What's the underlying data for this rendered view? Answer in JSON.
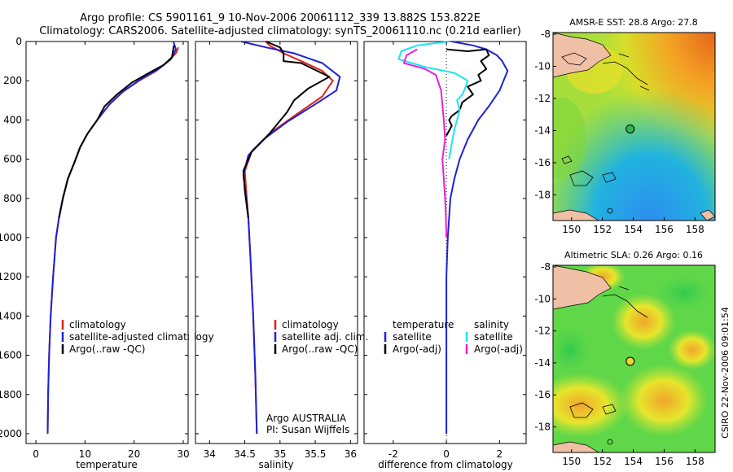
{
  "header": {
    "line1": "Argo profile: CS 5901161_9 10-Nov-2006 20061112_339 13.882S 153.822E",
    "line2": "Climatology: CARS2006. Satellite-adjusted climatology: synTS_20061110.nc (0.21d earlier)"
  },
  "credit": "CSIRO 22-Nov-2006 09:01:54",
  "colors": {
    "red": "#e0201b",
    "blue": "#1e22d6",
    "black": "#000000",
    "cyan": "#19e6ee",
    "magenta": "#ea20d8"
  },
  "chart_data": [
    {
      "type": "line",
      "id": "temperature",
      "xlabel": "temperature",
      "xlim": [
        -2,
        31
      ],
      "ylim": [
        2050,
        0
      ],
      "xticks": [
        0,
        10,
        20,
        30
      ],
      "yticks": [
        0,
        200,
        400,
        600,
        800,
        1000,
        1200,
        1400,
        1600,
        1800,
        2000
      ],
      "legend": [
        "climatology",
        "satellite-adjusted climatology",
        "Argo(..raw -QC)"
      ],
      "series": [
        {
          "name": "climatology",
          "color": "red",
          "points": [
            [
              29.0,
              30
            ],
            [
              28.5,
              60
            ],
            [
              27,
              100
            ],
            [
              24.5,
              150
            ],
            [
              21,
              200
            ],
            [
              17.5,
              260
            ],
            [
              15,
              320
            ],
            [
              12.5,
              400
            ],
            [
              10.5,
              470
            ],
            [
              9,
              540
            ],
            [
              7.8,
              620
            ],
            [
              6.5,
              700
            ],
            [
              5.5,
              800
            ],
            [
              4.7,
              900
            ],
            [
              4.1,
              1000
            ],
            [
              3.5,
              1200
            ],
            [
              3.0,
              1400
            ],
            [
              2.7,
              1600
            ],
            [
              2.5,
              1800
            ],
            [
              2.4,
              2000
            ]
          ]
        },
        {
          "name": "satellite-adjusted climatology",
          "color": "blue",
          "points": [
            [
              28.0,
              0
            ],
            [
              28.5,
              40
            ],
            [
              27.5,
              90
            ],
            [
              25,
              140
            ],
            [
              21.5,
              190
            ],
            [
              18,
              250
            ],
            [
              15,
              320
            ],
            [
              12.5,
              400
            ],
            [
              10.5,
              470
            ],
            [
              9,
              540
            ],
            [
              7.8,
              620
            ],
            [
              6.5,
              700
            ],
            [
              5.5,
              800
            ],
            [
              4.7,
              900
            ],
            [
              4.1,
              1000
            ],
            [
              3.5,
              1200
            ],
            [
              3.0,
              1400
            ],
            [
              2.7,
              1600
            ],
            [
              2.5,
              1800
            ],
            [
              2.4,
              2000
            ]
          ]
        },
        {
          "name": "Argo(..raw -QC)",
          "color": "black",
          "points": [
            [
              28.1,
              20
            ],
            [
              27.7,
              80
            ],
            [
              26,
              120
            ],
            [
              23,
              160
            ],
            [
              19.5,
              210
            ],
            [
              16.5,
              270
            ],
            [
              14,
              330
            ],
            [
              12.5,
              400
            ],
            [
              10.5,
              470
            ],
            [
              9,
              540
            ],
            [
              7.8,
              620
            ],
            [
              6.5,
              700
            ],
            [
              5.5,
              800
            ],
            [
              4.7,
              900
            ]
          ]
        }
      ]
    },
    {
      "type": "line",
      "id": "salinity",
      "xlabel": "salinity",
      "xlim": [
        33.8,
        36.1
      ],
      "ylim": [
        2050,
        0
      ],
      "xticks": [
        34,
        34.5,
        35,
        35.5,
        36
      ],
      "legend": [
        "climatology",
        "satellite adj. clim.",
        "Argo(..raw -QC)"
      ],
      "annotation": [
        "Argo AUSTRALIA",
        "PI: Susan Wijffels"
      ],
      "series": [
        {
          "name": "climatology",
          "color": "red",
          "points": [
            [
              34.8,
              0
            ],
            [
              34.85,
              20
            ],
            [
              35.05,
              60
            ],
            [
              35.3,
              100
            ],
            [
              35.6,
              150
            ],
            [
              35.75,
              200
            ],
            [
              35.6,
              280
            ],
            [
              35.2,
              380
            ],
            [
              34.85,
              470
            ],
            [
              34.6,
              560
            ],
            [
              34.5,
              660
            ],
            [
              34.52,
              760
            ],
            [
              34.55,
              900
            ],
            [
              34.58,
              1100
            ],
            [
              34.62,
              1400
            ],
            [
              34.65,
              1700
            ],
            [
              34.67,
              2000
            ]
          ]
        },
        {
          "name": "satellite adj. clim.",
          "color": "blue",
          "points": [
            [
              34.45,
              0
            ],
            [
              34.8,
              30
            ],
            [
              35.2,
              60
            ],
            [
              35.6,
              110
            ],
            [
              35.85,
              180
            ],
            [
              35.8,
              250
            ],
            [
              35.5,
              320
            ],
            [
              35.1,
              410
            ],
            [
              34.8,
              490
            ],
            [
              34.55,
              580
            ],
            [
              34.48,
              680
            ],
            [
              34.52,
              800
            ],
            [
              34.55,
              900
            ],
            [
              34.58,
              1100
            ],
            [
              34.62,
              1400
            ],
            [
              34.65,
              1700
            ],
            [
              34.67,
              2000
            ]
          ]
        },
        {
          "name": "Argo(..raw -QC)",
          "color": "black",
          "points": [
            [
              34.8,
              0
            ],
            [
              35.0,
              30
            ],
            [
              35.05,
              60
            ],
            [
              35.05,
              100
            ],
            [
              35.3,
              110
            ],
            [
              35.7,
              180
            ],
            [
              35.4,
              240
            ],
            [
              35.2,
              300
            ],
            [
              35.1,
              360
            ],
            [
              34.85,
              470
            ],
            [
              34.6,
              560
            ],
            [
              34.48,
              660
            ],
            [
              34.5,
              760
            ],
            [
              34.55,
              900
            ]
          ]
        }
      ]
    },
    {
      "type": "line",
      "id": "difference",
      "xlabel": "difference from climatology",
      "xlim": [
        -3.1,
        3.0
      ],
      "ylim": [
        2050,
        0
      ],
      "xticks": [
        -2,
        0,
        2
      ],
      "legend": [
        "temperature",
        "satellite",
        "Argo(-adj)",
        "salinity",
        "satellite",
        "Argo(-adj)"
      ],
      "series": [
        {
          "name": "temperature satellite",
          "color": "blue",
          "points": [
            [
              0.2,
              0
            ],
            [
              1.0,
              20
            ],
            [
              1.5,
              40
            ],
            [
              1.9,
              70
            ],
            [
              2.1,
              100
            ],
            [
              2.3,
              150
            ],
            [
              2.0,
              250
            ],
            [
              1.6,
              330
            ],
            [
              1.2,
              400
            ],
            [
              0.8,
              500
            ],
            [
              0.5,
              600
            ],
            [
              0.3,
              700
            ],
            [
              0.15,
              800
            ],
            [
              0.05,
              1000
            ],
            [
              0,
              1200
            ],
            [
              0,
              2000
            ]
          ]
        },
        {
          "name": "temperature Argo(-adj)",
          "color": "black",
          "points": [
            [
              0,
              40
            ],
            [
              0.8,
              50
            ],
            [
              1.5,
              40
            ],
            [
              1.6,
              70
            ],
            [
              1.3,
              100
            ],
            [
              1.5,
              140
            ],
            [
              1.2,
              170
            ],
            [
              1.3,
              200
            ],
            [
              0.8,
              230
            ],
            [
              1.0,
              270
            ],
            [
              0.6,
              310
            ],
            [
              0.5,
              350
            ],
            [
              0.2,
              380
            ],
            [
              0.1,
              400
            ],
            [
              0.2,
              430
            ],
            [
              0,
              480
            ]
          ]
        },
        {
          "name": "salinity satellite",
          "color": "cyan",
          "points": [
            [
              0.1,
              0
            ],
            [
              -1.1,
              20
            ],
            [
              -1.7,
              50
            ],
            [
              -1.8,
              90
            ],
            [
              -0.8,
              130
            ],
            [
              0.3,
              160
            ],
            [
              0.8,
              200
            ],
            [
              0.7,
              240
            ],
            [
              0.6,
              270
            ],
            [
              0.4,
              300
            ],
            [
              0.5,
              350
            ],
            [
              0.4,
              400
            ],
            [
              0.3,
              450
            ],
            [
              0.2,
              520
            ],
            [
              0.1,
              600
            ]
          ]
        },
        {
          "name": "salinity Argo(-adj)",
          "color": "magenta",
          "points": [
            [
              -1.1,
              40
            ],
            [
              -1.5,
              70
            ],
            [
              -1.6,
              110
            ],
            [
              -0.8,
              140
            ],
            [
              -0.4,
              170
            ],
            [
              -0.2,
              250
            ],
            [
              -0.1,
              400
            ],
            [
              -0.05,
              500
            ],
            [
              -0.15,
              600
            ],
            [
              -0.1,
              700
            ],
            [
              -0.05,
              800
            ],
            [
              -0.02,
              900
            ],
            [
              0,
              1000
            ]
          ]
        }
      ]
    },
    {
      "type": "heatmap",
      "id": "sst-map",
      "title": "AMSR-E SST: 28.8 Argo: 27.8",
      "xticks": [
        "150",
        "152",
        "154",
        "156",
        "158"
      ],
      "yticks": [
        "-8",
        "-10",
        "-12",
        "-14",
        "-16",
        "-18"
      ],
      "lon": [
        148.8,
        159.3
      ],
      "lat": [
        -19.6,
        -7.9
      ],
      "marker": [
        153.8,
        -13.9
      ]
    },
    {
      "type": "heatmap",
      "id": "sla-map",
      "title": "Altimetric SLA: 0.26 Argo: 0.16",
      "xticks": [
        "150",
        "152",
        "154",
        "156",
        "158"
      ],
      "yticks": [
        "-8",
        "-10",
        "-12",
        "-14",
        "-16",
        "-18"
      ],
      "lon": [
        148.8,
        159.3
      ],
      "lat": [
        -19.6,
        -7.9
      ],
      "marker": [
        153.8,
        -13.9
      ]
    }
  ]
}
